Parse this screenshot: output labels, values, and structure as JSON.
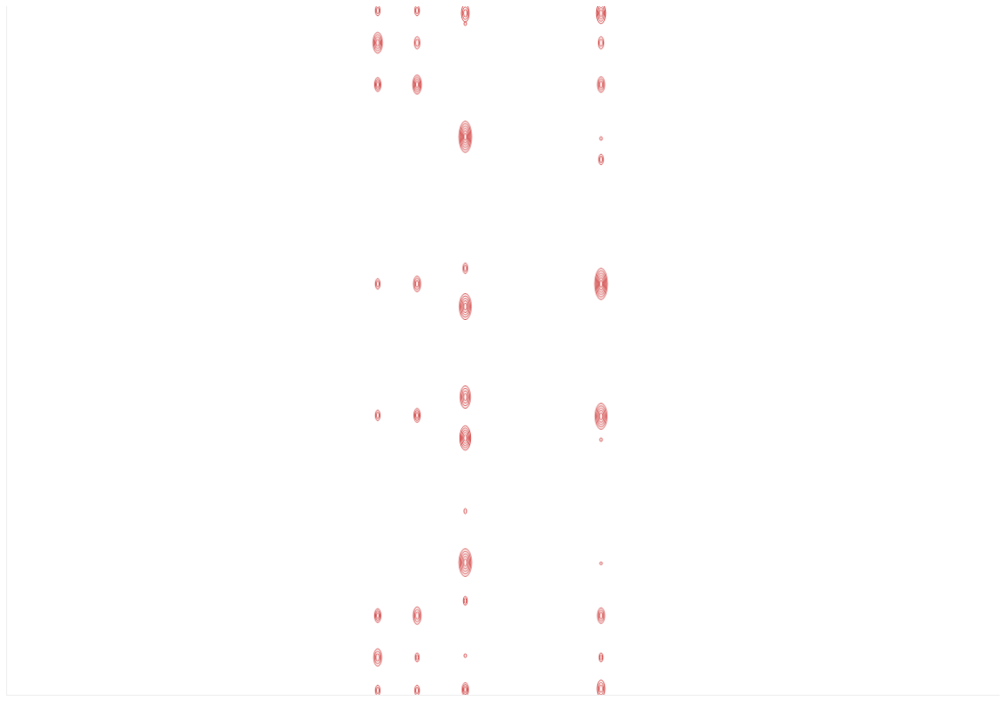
{
  "chart_data": {
    "type": "scatter",
    "tick_labels": false,
    "grid": false,
    "marker": "contour",
    "xlim": [
      0,
      1133
    ],
    "ylim": [
      0,
      791
    ],
    "series": [
      {
        "color": "#c81e1e",
        "x": [
          424,
          424,
          424,
          424,
          424,
          424,
          424,
          424,
          469,
          469,
          469,
          469,
          469,
          469,
          469,
          469,
          524,
          524,
          524,
          524,
          524,
          524,
          524,
          524,
          524,
          524,
          524,
          524,
          679,
          679,
          679,
          679,
          679,
          679,
          679,
          679,
          679,
          679,
          679,
          679
        ],
        "values": [
          786,
          749,
          701,
          472,
          321,
          91,
          43,
          5,
          786,
          749,
          701,
          472,
          321,
          91,
          43,
          5,
          783,
          771,
          641,
          490,
          446,
          342,
          295,
          211,
          152,
          108,
          45,
          6,
          783,
          749,
          701,
          639,
          615,
          472,
          320,
          293,
          151,
          91,
          43,
          7
        ],
        "sizes": [
          6,
          12,
          8,
          6,
          6,
          8,
          10,
          6,
          6,
          7,
          11,
          9,
          8,
          10,
          5,
          6,
          10,
          2,
          18,
          6,
          15,
          13,
          14,
          3,
          16,
          5,
          2,
          8,
          12,
          7,
          9,
          2,
          6,
          18,
          15,
          2,
          1,
          9,
          5,
          10
        ]
      }
    ]
  }
}
